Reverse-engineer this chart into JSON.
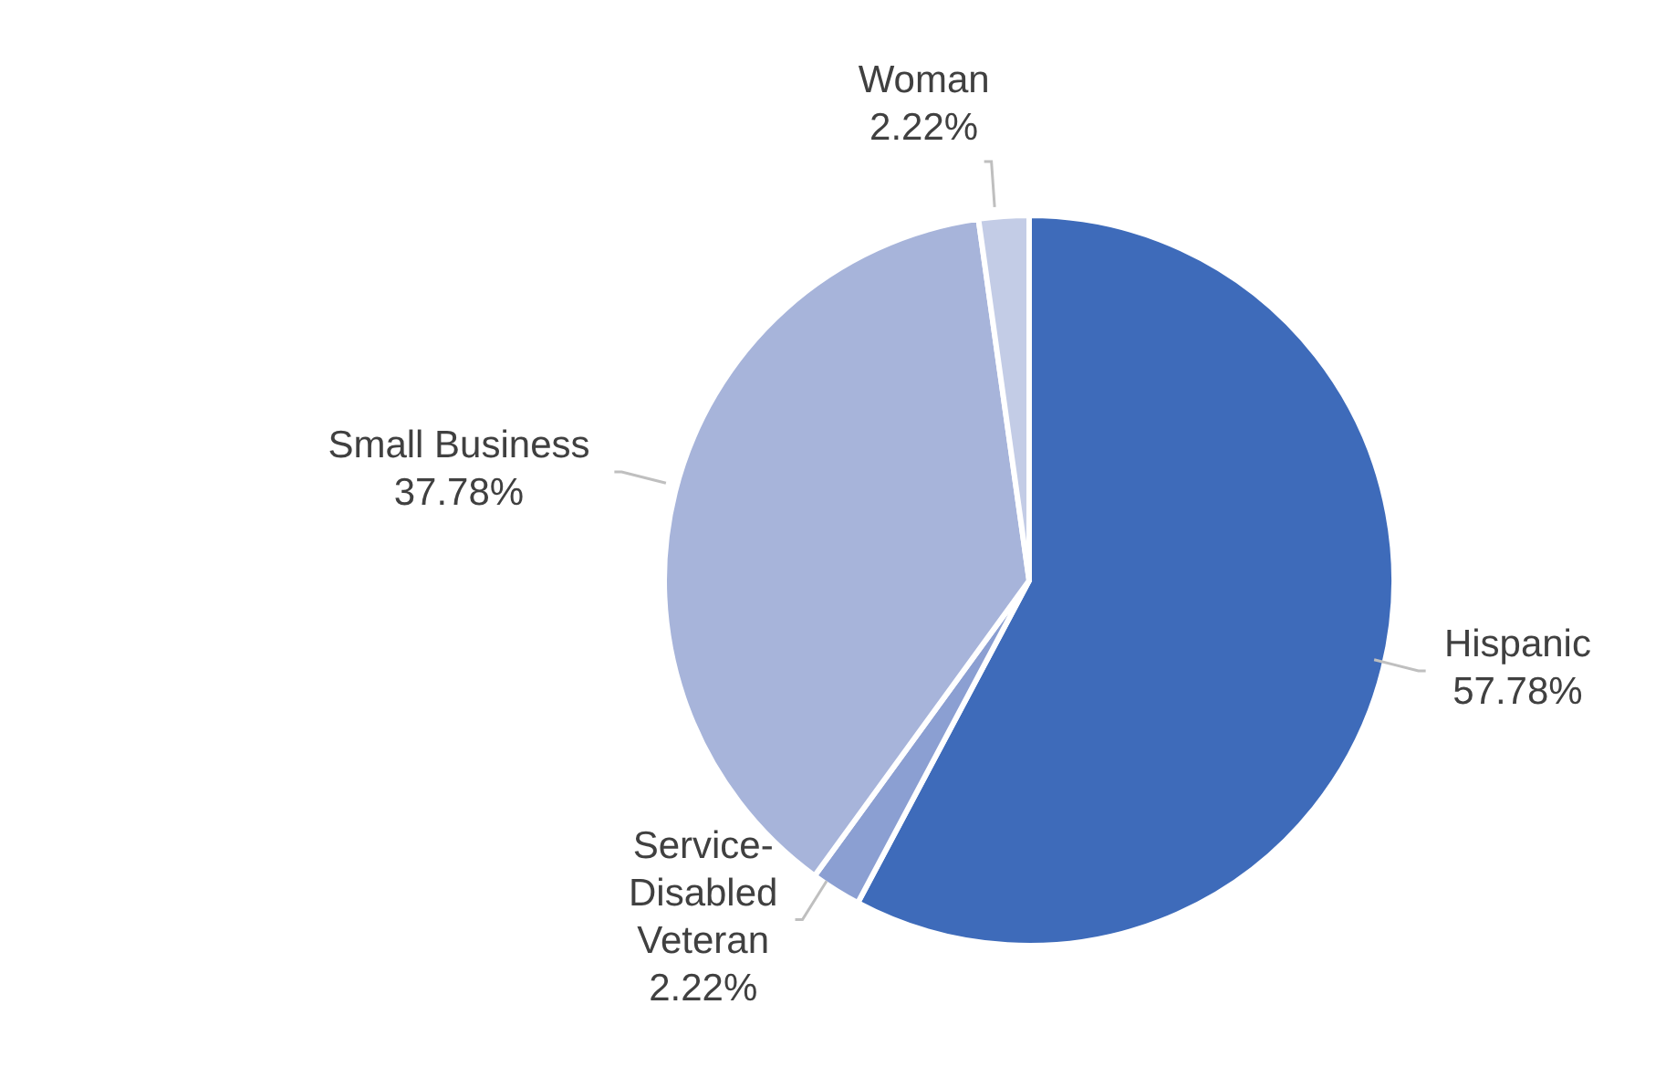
{
  "chart_data": {
    "type": "pie",
    "categories": [
      "Hispanic",
      "Service-Disabled Veteran",
      "Small Business",
      "Woman"
    ],
    "values": [
      57.78,
      2.22,
      37.78,
      2.22
    ],
    "value_labels": [
      "57.78%",
      "2.22%",
      "37.78%",
      "2.22%"
    ],
    "colors": [
      "#3e6bba",
      "#8b9fd2",
      "#a7b4da",
      "#c3cce6"
    ]
  }
}
